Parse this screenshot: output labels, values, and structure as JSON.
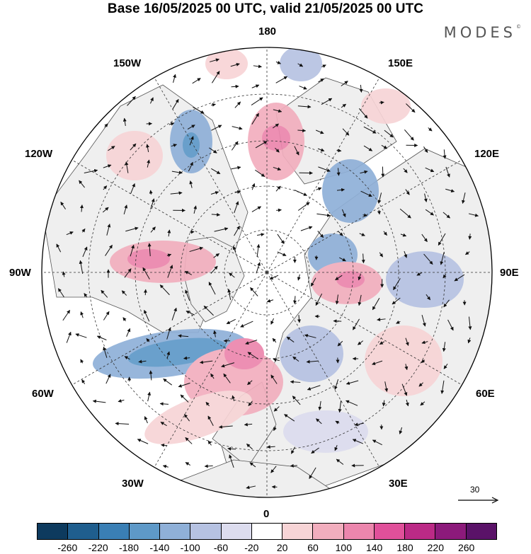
{
  "header": {
    "title": "Base 16/05/2025 00 UTC, valid 21/05/2025 00 UTC",
    "brand": "MODES",
    "brand_mark": "©"
  },
  "map": {
    "projection": "north-polar-stereographic",
    "longitude_labels": {
      "top": "180",
      "bottom": "0",
      "left": "90W",
      "right": "90E",
      "upper_left_1": "150W",
      "upper_left_2": "120W",
      "upper_right_1": "150E",
      "upper_right_2": "120E",
      "lower_left_1": "60W",
      "lower_left_2": "30W",
      "lower_right_1": "60E",
      "lower_right_2": "30E"
    },
    "vector_scale_label": "30",
    "colors": {
      "land": "#efefef",
      "ocean": "#ffffff",
      "coast": "#444444",
      "grid": "#333333",
      "arrow": "#111111"
    }
  },
  "colorbar": {
    "ticks": [
      "-260",
      "-220",
      "-180",
      "-140",
      "-100",
      "-60",
      "-20",
      "20",
      "60",
      "100",
      "140",
      "180",
      "220",
      "260"
    ],
    "colors": [
      "#0d3a5e",
      "#1f5e8e",
      "#3a7fb5",
      "#5e99c8",
      "#8fb0d8",
      "#b6c2e2",
      "#dcdcee",
      "#ffffff",
      "#f7d4d6",
      "#f2aebe",
      "#ec86ad",
      "#e0509a",
      "#bb2a86",
      "#8c1a7b",
      "#5a1268"
    ]
  }
}
